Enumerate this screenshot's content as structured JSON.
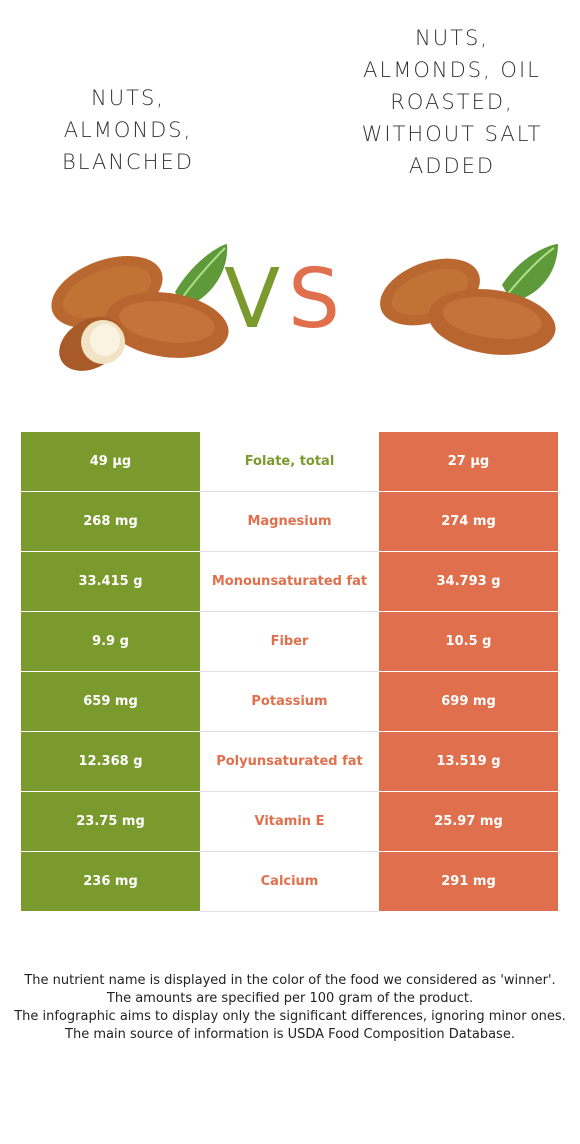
{
  "colors": {
    "left_food": "#7a9a2e",
    "right_food": "#e0704d",
    "title_text": "#333333",
    "footnote_text": "#222222"
  },
  "header": {
    "left_title": "NUTS, ALMONDS, BLANCHED",
    "right_title": "NUTS, ALMONDS, OIL ROASTED, WITHOUT SALT ADDED",
    "vs_v": "V",
    "vs_s": "S",
    "left_image_icon": "almonds-with-leaf-image",
    "right_image_icon": "almonds-with-leaf-image"
  },
  "table": {
    "rows": [
      {
        "left": "49 µg",
        "nutrient": "Folate, total",
        "right": "27 µg",
        "winner": "left"
      },
      {
        "left": "268 mg",
        "nutrient": "Magnesium",
        "right": "274 mg",
        "winner": "right"
      },
      {
        "left": "33.415 g",
        "nutrient": "Monounsaturated fat",
        "right": "34.793 g",
        "winner": "right"
      },
      {
        "left": "9.9 g",
        "nutrient": "Fiber",
        "right": "10.5 g",
        "winner": "right"
      },
      {
        "left": "659 mg",
        "nutrient": "Potassium",
        "right": "699 mg",
        "winner": "right"
      },
      {
        "left": "12.368 g",
        "nutrient": "Polyunsaturated fat",
        "right": "13.519 g",
        "winner": "right"
      },
      {
        "left": "23.75 mg",
        "nutrient": "Vitamin E",
        "right": "25.97 mg",
        "winner": "right"
      },
      {
        "left": "236 mg",
        "nutrient": "Calcium",
        "right": "291 mg",
        "winner": "right"
      }
    ]
  },
  "footnote": {
    "line1": "The nutrient name is displayed in the color of the food we considered as 'winner'.",
    "line2": "The amounts are specified per 100 gram of the product.",
    "line3": "The infographic aims to display only the significant differences, ignoring minor ones.",
    "line4": "The main source of information is USDA Food Composition Database."
  }
}
